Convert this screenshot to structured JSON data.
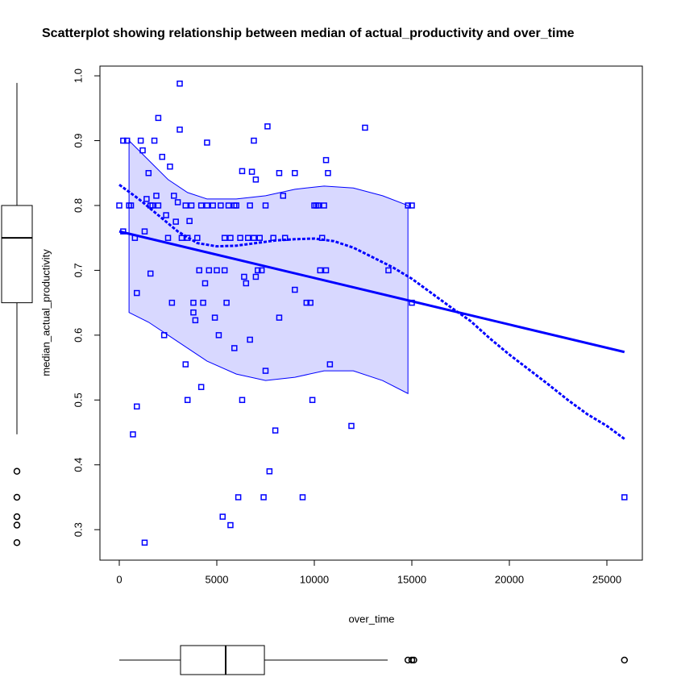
{
  "chart_data": {
    "type": "scatter",
    "title": "Scatterplot showing relationship between median of actual_productivity and over_time",
    "xlabel": "over_time",
    "ylabel": "median_actual_productivity",
    "color": "#0000ff",
    "band_color": "#d8d8ff",
    "xlim": [
      -992,
      26818
    ],
    "ylim": [
      0.253,
      1.015
    ],
    "xticks": [
      0,
      5000,
      10000,
      15000,
      20000,
      25000
    ],
    "yticks": [
      0.3,
      0.4,
      0.5,
      0.6,
      0.7,
      0.8,
      0.9,
      {
        "value": 1,
        "label": "1.0"
      }
    ],
    "x": [
      0,
      200,
      400,
      200,
      500,
      600,
      700,
      900,
      800,
      900,
      1100,
      1200,
      1300,
      1300,
      1400,
      1500,
      1600,
      1600,
      1700,
      1800,
      1900,
      2000,
      2000,
      2200,
      2300,
      2400,
      2500,
      2600,
      2700,
      2800,
      2900,
      3000,
      3100,
      3100,
      3200,
      3400,
      3400,
      3500,
      3500,
      3600,
      3700,
      3800,
      3800,
      3900,
      4000,
      4100,
      4200,
      4200,
      4300,
      4400,
      4500,
      4500,
      4600,
      4800,
      4900,
      5000,
      5100,
      5200,
      5300,
      5400,
      5400,
      5500,
      5600,
      5700,
      5700,
      5900,
      5900,
      6000,
      6100,
      6200,
      6300,
      6300,
      6400,
      6500,
      6600,
      6700,
      6700,
      6800,
      6900,
      6900,
      7000,
      7000,
      7100,
      7200,
      7300,
      7400,
      7500,
      7500,
      7600,
      7700,
      7900,
      8000,
      8200,
      8200,
      8400,
      8500,
      9000,
      9000,
      9400,
      9600,
      9800,
      9900,
      10000,
      10100,
      10200,
      10300,
      10400,
      10500,
      10600,
      10600,
      10700,
      10800,
      11900,
      12600,
      13800,
      14800,
      15000,
      15000,
      25900
    ],
    "values": [
      0.8,
      0.9,
      0.9,
      0.76,
      0.8,
      0.8,
      0.447,
      0.49,
      0.75,
      0.665,
      0.9,
      0.885,
      0.28,
      0.76,
      0.81,
      0.85,
      0.695,
      0.8,
      0.8,
      0.9,
      0.815,
      0.935,
      0.8,
      0.875,
      0.6,
      0.785,
      0.75,
      0.86,
      0.65,
      0.815,
      0.775,
      0.805,
      0.917,
      0.988,
      0.75,
      0.555,
      0.8,
      0.5,
      0.75,
      0.776,
      0.8,
      0.65,
      0.635,
      0.623,
      0.75,
      0.7,
      0.8,
      0.52,
      0.65,
      0.68,
      0.8,
      0.897,
      0.7,
      0.8,
      0.627,
      0.7,
      0.6,
      0.8,
      0.32,
      0.75,
      0.7,
      0.65,
      0.8,
      0.75,
      0.307,
      0.58,
      0.8,
      0.8,
      0.35,
      0.75,
      0.853,
      0.5,
      0.69,
      0.68,
      0.75,
      0.8,
      0.593,
      0.852,
      0.75,
      0.9,
      0.84,
      0.69,
      0.7,
      0.75,
      0.7,
      0.35,
      0.8,
      0.545,
      0.922,
      0.39,
      0.75,
      0.453,
      0.627,
      0.85,
      0.815,
      0.75,
      0.85,
      0.67,
      0.35,
      0.65,
      0.65,
      0.5,
      0.8,
      0.8,
      0.8,
      0.7,
      0.75,
      0.8,
      0.87,
      0.7,
      0.85,
      0.555,
      0.46,
      0.92,
      0.7,
      0.8,
      0.8,
      0.65,
      0.35
    ],
    "fit_line": {
      "x": [
        0,
        25900
      ],
      "values": [
        0.76,
        0.574
      ]
    },
    "smooth_line": {
      "x": [
        0,
        1000,
        2000,
        3000,
        4000,
        5000,
        6000,
        7000,
        8000,
        9000,
        10000,
        11000,
        12000,
        13000,
        14000,
        15000,
        16000,
        17000,
        18000,
        19000,
        20000,
        21000,
        22000,
        23000,
        24000,
        25000,
        25900
      ],
      "values": [
        0.832,
        0.81,
        0.785,
        0.76,
        0.742,
        0.737,
        0.738,
        0.742,
        0.746,
        0.748,
        0.749,
        0.745,
        0.735,
        0.72,
        0.705,
        0.687,
        0.665,
        0.643,
        0.622,
        0.595,
        0.57,
        0.547,
        0.524,
        0.5,
        0.478,
        0.46,
        0.44
      ]
    },
    "band": {
      "x": [
        500,
        1500,
        2500,
        3500,
        4500,
        6000,
        7500,
        9000,
        10500,
        12000,
        13500,
        14800
      ],
      "upper": [
        0.9,
        0.87,
        0.84,
        0.82,
        0.81,
        0.81,
        0.815,
        0.825,
        0.83,
        0.827,
        0.815,
        0.8
      ],
      "lower": [
        0.635,
        0.62,
        0.6,
        0.58,
        0.56,
        0.54,
        0.53,
        0.535,
        0.545,
        0.545,
        0.53,
        0.51
      ]
    },
    "x_boxplot": {
      "whislo": 0,
      "q1": 3140,
      "med": 5455,
      "q3": 7440,
      "whishi": 13760,
      "outliers": [
        14800,
        15000,
        15100,
        25900
      ]
    },
    "y_boxplot": {
      "whislo": 0.447,
      "q1": 0.65,
      "med": 0.75,
      "q3": 0.8,
      "whishi": 0.989,
      "outliers": [
        0.39,
        0.35,
        0.32,
        0.307,
        0.28
      ]
    }
  }
}
